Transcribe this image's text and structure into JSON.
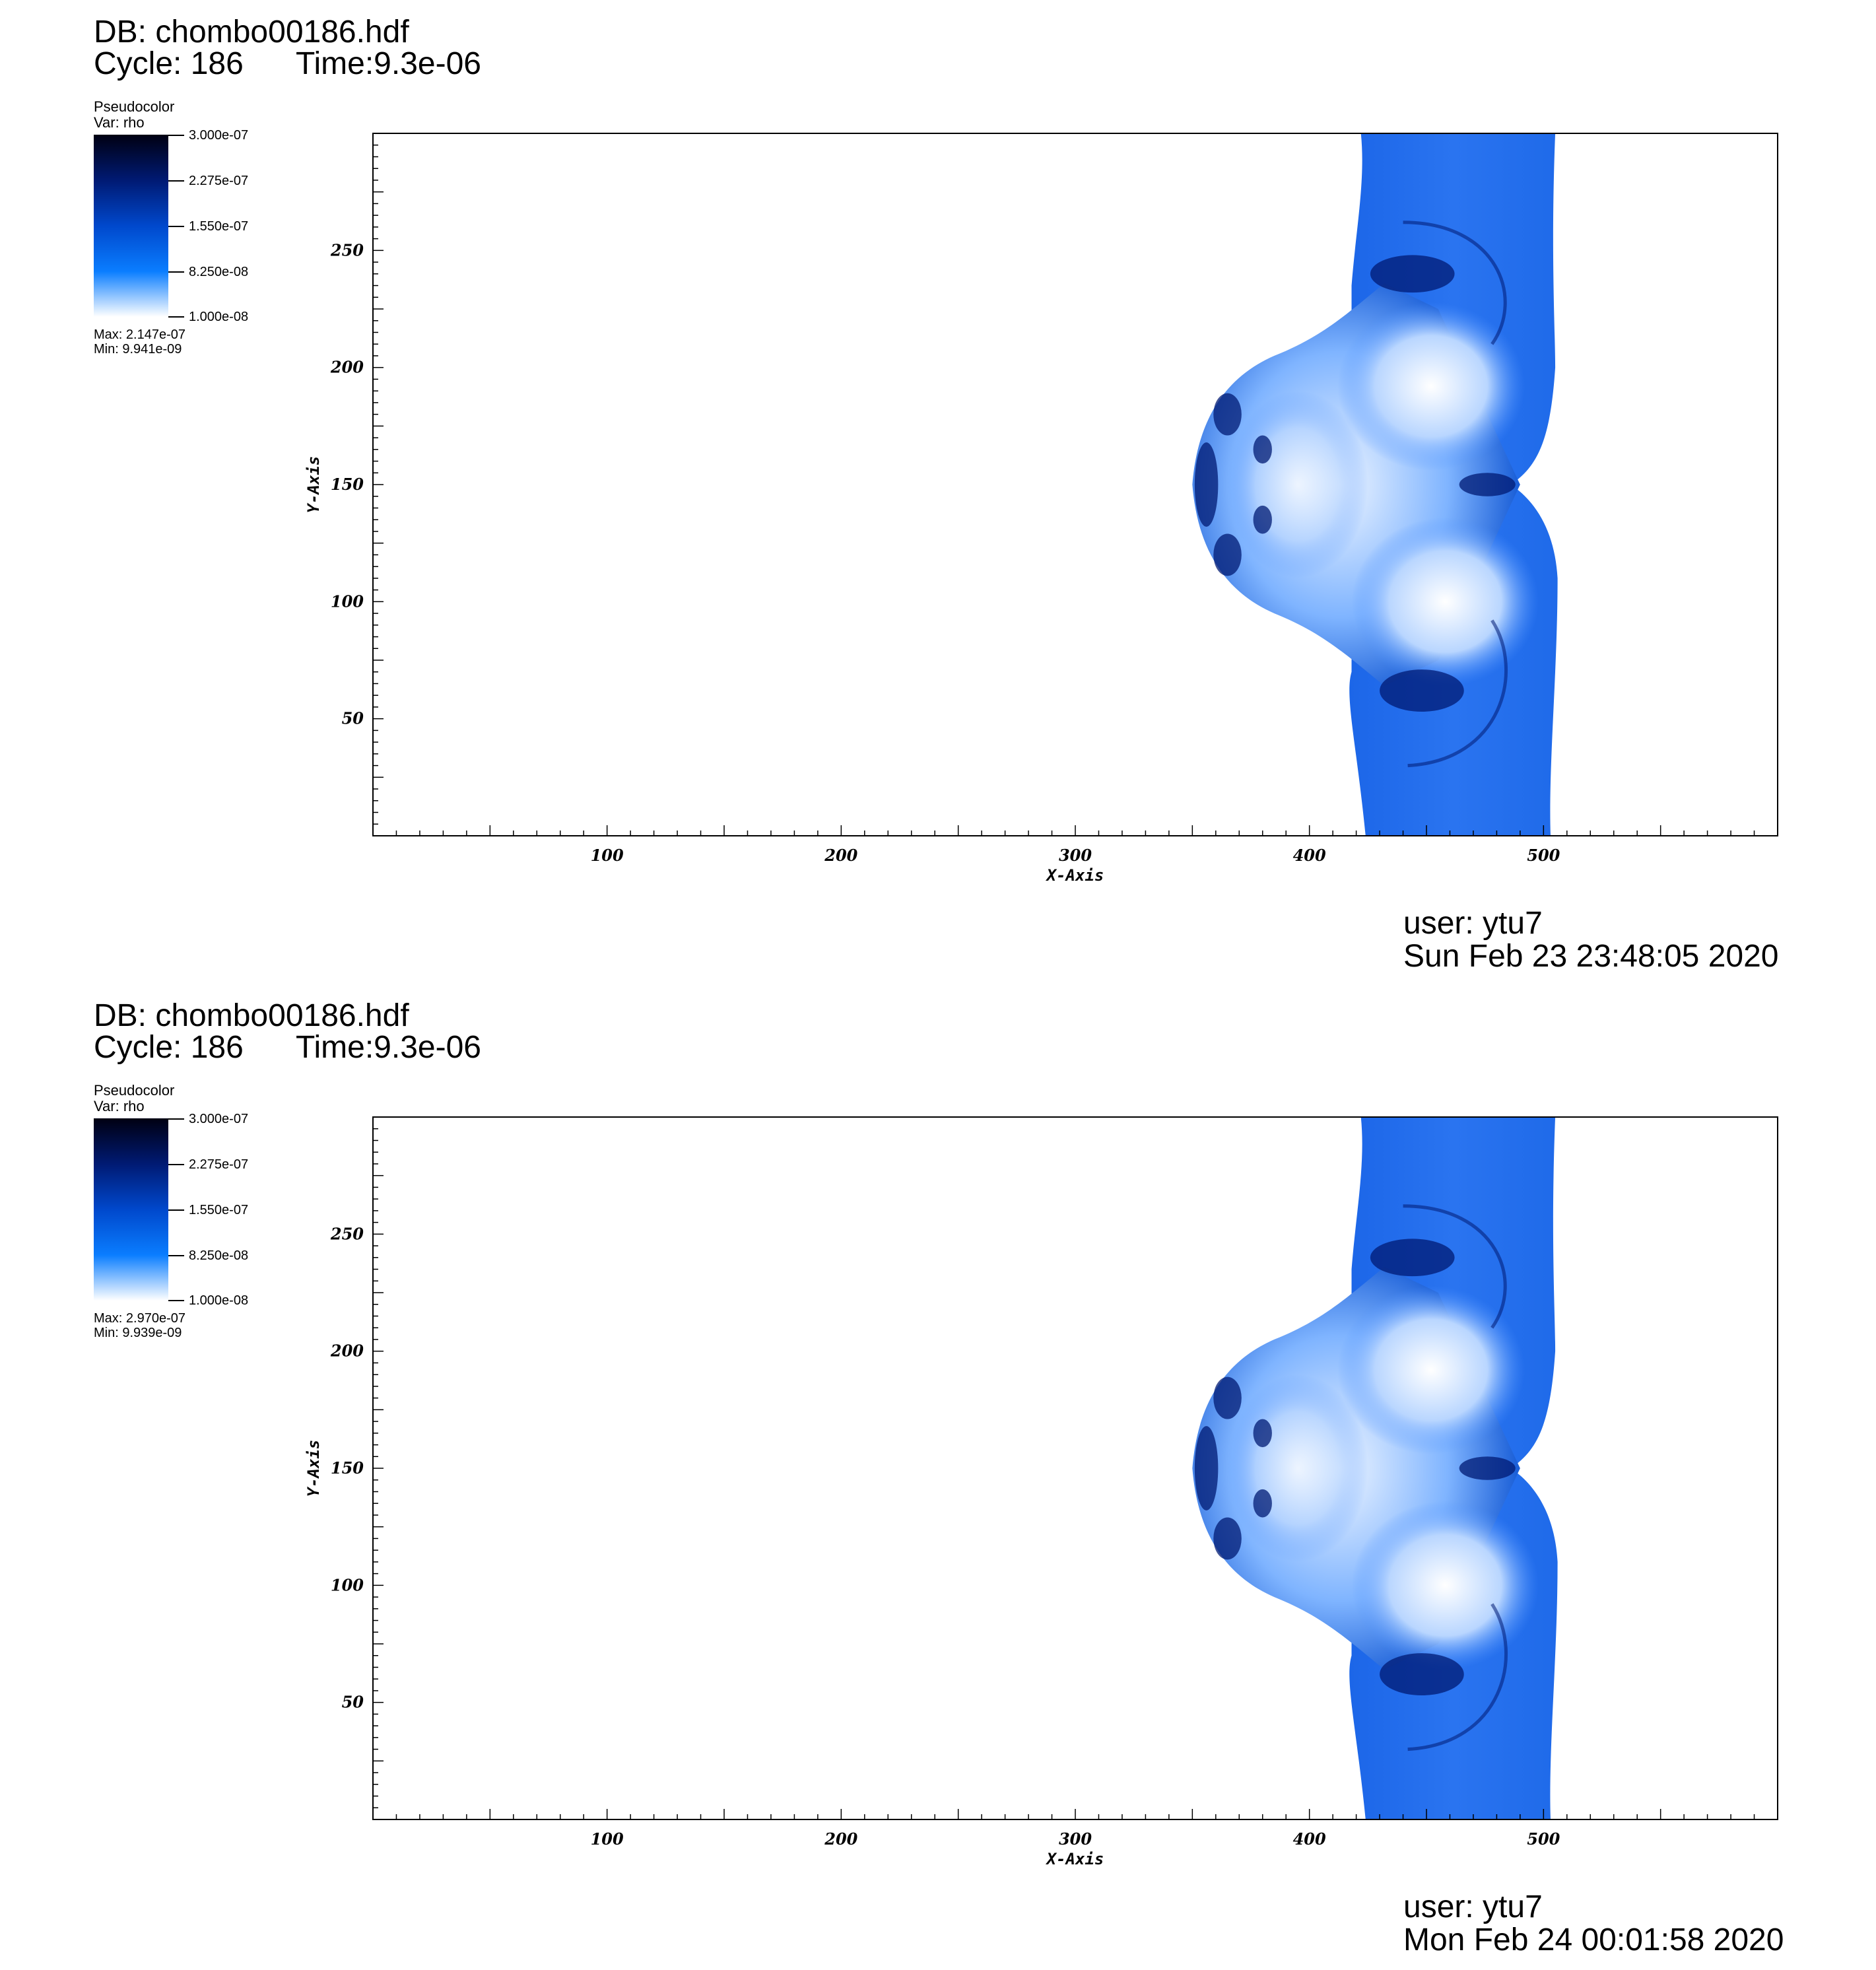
{
  "colors": {
    "dark": "#000012",
    "deep": "#001a73",
    "mid": "#0048cc",
    "bright": "#0a7dff",
    "light": "#ffffff"
  },
  "colorbar": {
    "title": "Pseudocolor",
    "var": "Var: rho",
    "ticks": [
      "3.000e-07",
      "2.275e-07",
      "1.550e-07",
      "8.250e-08",
      "1.000e-08"
    ]
  },
  "panels": [
    {
      "db": "DB: chombo00186.hdf",
      "cycle": "Cycle: 186",
      "time": "Time:9.3e-06",
      "max": "Max:  2.147e-07",
      "min": "Min:  9.941e-09",
      "user": "user: ytu7",
      "date": "Sun Feb 23 23:48:05 2020"
    },
    {
      "db": "DB: chombo00186.hdf",
      "cycle": "Cycle: 186",
      "time": "Time:9.3e-06",
      "max": "Max:  2.970e-07",
      "min": "Min:  9.939e-09",
      "user": "user: ytu7",
      "date": "Mon Feb 24 00:01:58 2020"
    }
  ],
  "chart_data": [
    {
      "type": "heatmap",
      "variable": "rho",
      "xlabel": "X-Axis",
      "ylabel": "Y-Axis",
      "xlim": [
        0,
        600
      ],
      "ylim": [
        0,
        300
      ],
      "xticks": [
        100,
        200,
        300,
        400,
        500
      ],
      "yticks": [
        50,
        100,
        150,
        200,
        250
      ],
      "color_range": [
        1e-08,
        3e-07
      ],
      "data_max": 2.147e-07,
      "data_min": 9.941e-09,
      "grid": false
    },
    {
      "type": "heatmap",
      "variable": "rho",
      "xlabel": "X-Axis",
      "ylabel": "Y-Axis",
      "xlim": [
        0,
        600
      ],
      "ylim": [
        0,
        300
      ],
      "xticks": [
        100,
        200,
        300,
        400,
        500
      ],
      "yticks": [
        50,
        100,
        150,
        200,
        250
      ],
      "color_range": [
        1e-08,
        3e-07
      ],
      "data_max": 2.97e-07,
      "data_min": 9.939e-09,
      "grid": false
    }
  ]
}
